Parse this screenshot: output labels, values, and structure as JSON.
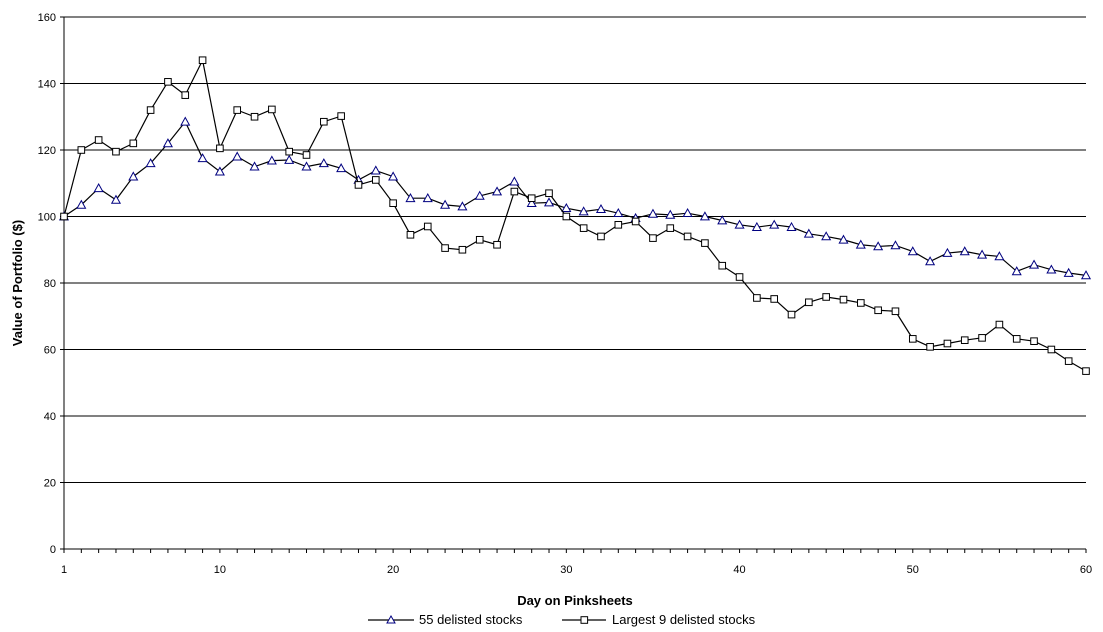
{
  "chart_data": {
    "type": "line",
    "xlabel": "Day on Pinksheets",
    "ylabel": "Value of Portfolio ($)",
    "xlim": [
      1,
      60
    ],
    "ylim": [
      0,
      160
    ],
    "x_ticks": [
      1,
      10,
      20,
      30,
      40,
      50,
      60
    ],
    "y_ticks": [
      0,
      20,
      40,
      60,
      80,
      100,
      120,
      140,
      160
    ],
    "grid": "horizontal",
    "legend_position": "bottom-center",
    "series": [
      {
        "name": "55 delisted stocks",
        "marker": "triangle",
        "color": "#000080",
        "values": [
          100,
          103.5,
          108.5,
          105,
          112,
          116,
          122,
          128.5,
          117.5,
          113.5,
          118,
          115,
          116.8,
          117,
          115,
          116,
          114.5,
          111,
          113.8,
          112,
          105.5,
          105.5,
          103.5,
          103,
          106.2,
          107.5,
          110.5,
          104,
          104.2,
          102.5,
          101.5,
          102.2,
          101,
          99.5,
          100.8,
          100.5,
          101,
          100,
          98.8,
          97.5,
          96.8,
          97.5,
          96.8,
          94.8,
          94,
          93,
          91.5,
          91,
          91.3,
          89.5,
          86.5,
          89,
          89.5,
          88.5,
          88,
          83.5,
          85.5,
          84,
          83,
          82.3
        ]
      },
      {
        "name": "Largest 9 delisted stocks",
        "marker": "square",
        "color": "#000000",
        "values": [
          100,
          120,
          123,
          119.5,
          122,
          132,
          140.5,
          136.5,
          147,
          120.5,
          132,
          130,
          132.2,
          119.5,
          118.5,
          128.5,
          130.2,
          109.5,
          111,
          104,
          94.5,
          97,
          90.5,
          90,
          93,
          91.5,
          107.5,
          105.5,
          107,
          100,
          96.5,
          94,
          97.5,
          98.5,
          93.5,
          96.5,
          94,
          92,
          85.2,
          81.8,
          75.5,
          75.2,
          70.5,
          74.2,
          75.8,
          75,
          74,
          71.8,
          71.5,
          63.2,
          60.8,
          61.8,
          62.8,
          63.5,
          67.5,
          63.2,
          62.5,
          60,
          56.5,
          53.5
        ]
      }
    ]
  }
}
